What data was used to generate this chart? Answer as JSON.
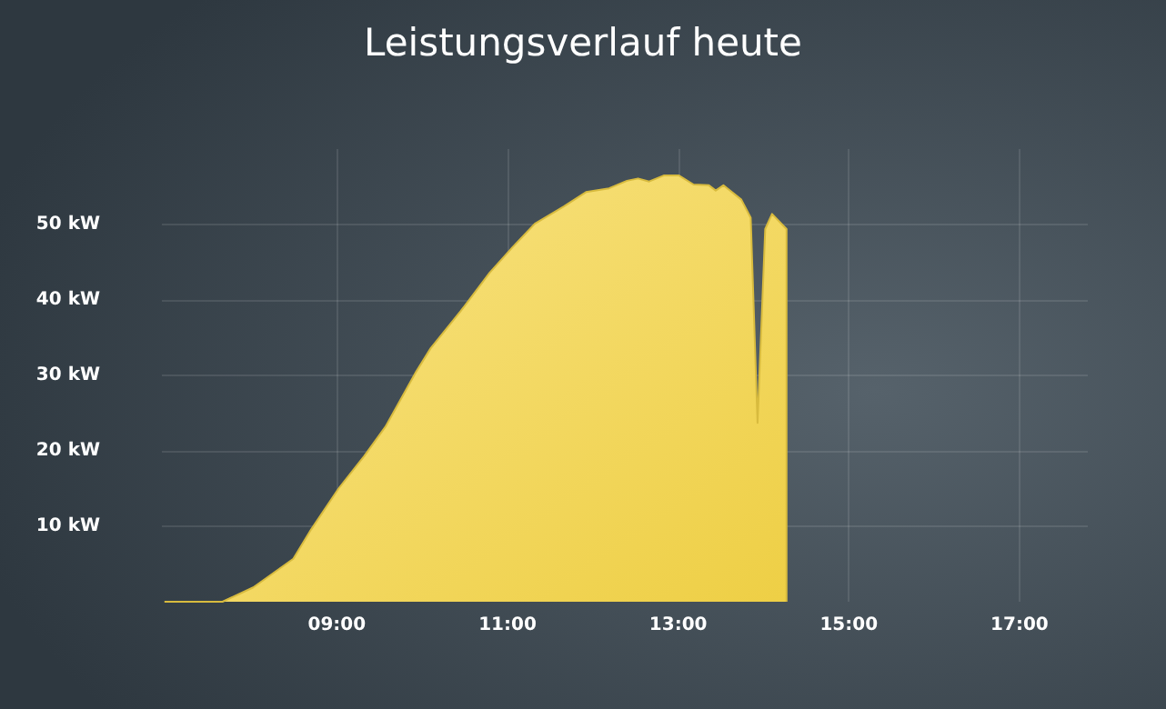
{
  "chart_data": {
    "type": "area",
    "title": "Leistungsverlauf heute",
    "xlim": [
      6.95,
      17.8
    ],
    "xticks": [
      {
        "value": 9,
        "label": "09:00"
      },
      {
        "value": 11,
        "label": "11:00"
      },
      {
        "value": 13,
        "label": "13:00"
      },
      {
        "value": 15,
        "label": "15:00"
      },
      {
        "value": 17,
        "label": "17:00"
      }
    ],
    "ylim": [
      0,
      60
    ],
    "yticks": [
      {
        "value": 10,
        "label": "10 kW"
      },
      {
        "value": 20,
        "label": "20 kW"
      },
      {
        "value": 30,
        "label": "30 kW"
      },
      {
        "value": 40,
        "label": "40 kW"
      },
      {
        "value": 50,
        "label": "50 kW"
      }
    ],
    "grid": true,
    "series": [
      {
        "color": "#f5d547",
        "x": [
          6.98,
          7.66,
          8.02,
          8.49,
          8.7,
          9.02,
          9.32,
          9.57,
          9.93,
          10.1,
          10.45,
          10.79,
          11.06,
          11.32,
          11.66,
          11.92,
          12.19,
          12.4,
          12.53,
          12.66,
          12.83,
          13.01,
          13.18,
          13.36,
          13.44,
          13.53,
          13.74,
          13.85,
          13.93,
          14.02,
          14.1,
          14.27,
          14.27
        ],
        "values": [
          0,
          0,
          1.9,
          5.7,
          9.6,
          15,
          19.3,
          23.2,
          30.5,
          33.6,
          38.5,
          43.6,
          47,
          50.1,
          52.4,
          54.3,
          54.8,
          55.8,
          56.1,
          55.7,
          56.5,
          56.5,
          55.3,
          55.2,
          54.5,
          55.2,
          53.3,
          50.9,
          23.7,
          49.4,
          51.4,
          49.4,
          0
        ]
      }
    ]
  }
}
